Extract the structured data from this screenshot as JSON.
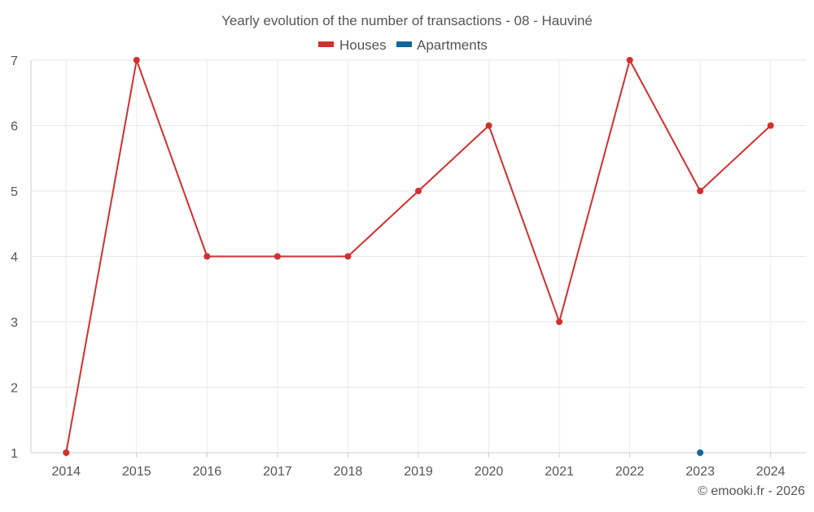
{
  "chart_data": {
    "type": "line",
    "title": "Yearly evolution of the number of transactions - 08 - Hauviné",
    "categories": [
      "2014",
      "2015",
      "2016",
      "2017",
      "2018",
      "2019",
      "2020",
      "2021",
      "2022",
      "2023",
      "2024"
    ],
    "series": [
      {
        "name": "Houses",
        "color": "#d32f2f",
        "values": [
          1,
          7,
          4,
          4,
          4,
          5,
          6,
          3,
          7,
          5,
          6
        ]
      },
      {
        "name": "Apartments",
        "color": "#0e6699",
        "values": [
          null,
          null,
          null,
          null,
          null,
          null,
          null,
          null,
          null,
          1,
          null
        ]
      }
    ],
    "yticks": [
      "1",
      "2",
      "3",
      "4",
      "5",
      "6",
      "7"
    ],
    "ylim": [
      1,
      7
    ],
    "grid": true,
    "legend_position": "top-center"
  },
  "credit": "© emooki.fr - 2026"
}
